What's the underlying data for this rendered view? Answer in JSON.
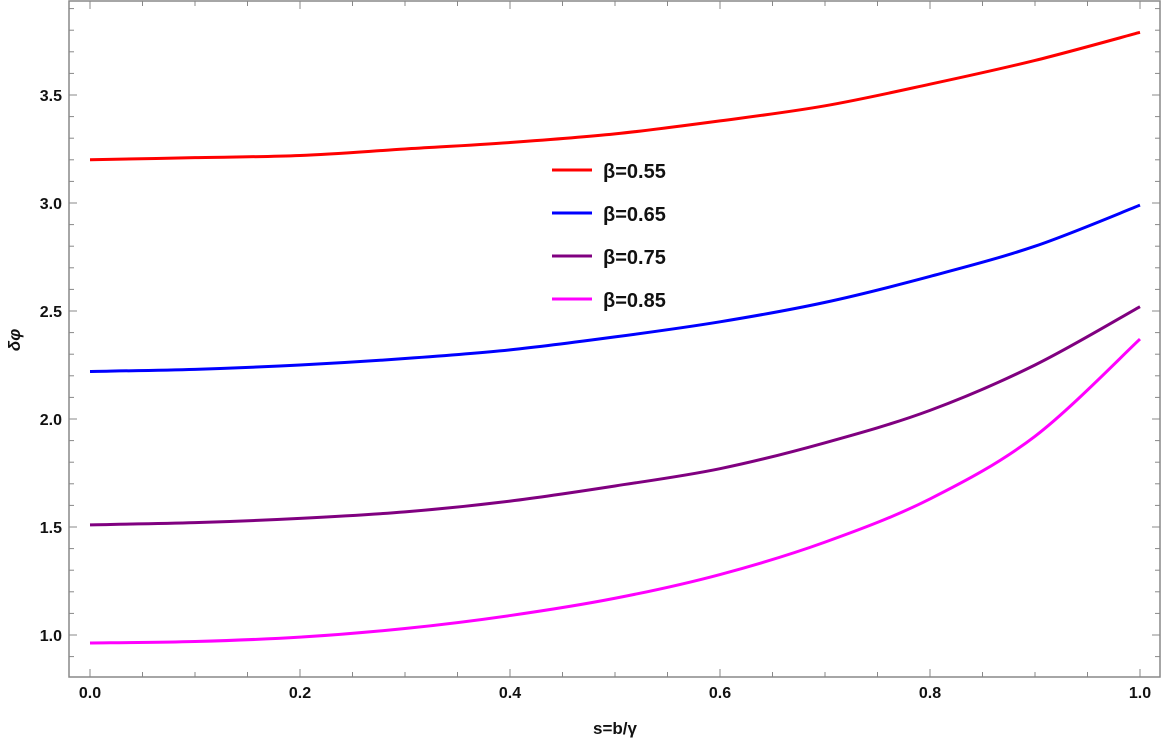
{
  "chart_data": {
    "type": "line",
    "title": "",
    "xlabel": "s=b/γ",
    "ylabel": "δφ",
    "xlim": [
      -0.02,
      1.02
    ],
    "ylim": [
      0.73,
      3.86
    ],
    "xticks": [
      0.0,
      0.2,
      0.4,
      0.6,
      0.8,
      1.0
    ],
    "xtick_labels": [
      "0.0",
      "0.2",
      "0.4",
      "0.6",
      "0.8",
      "1.0"
    ],
    "yticks": [
      1.0,
      1.5,
      2.0,
      2.5,
      3.0,
      3.5
    ],
    "ytick_labels": [
      "1.0",
      "1.5",
      "2.0",
      "2.5",
      "3.0",
      "3.5"
    ],
    "grid": false,
    "legend_position": "center-top",
    "x": [
      0.0,
      0.1,
      0.2,
      0.3,
      0.4,
      0.5,
      0.6,
      0.7,
      0.8,
      0.9,
      1.0
    ],
    "series": [
      {
        "name": "β=0.55",
        "color": "#ff0000",
        "values": [
          3.2,
          3.21,
          3.22,
          3.25,
          3.28,
          3.32,
          3.38,
          3.45,
          3.55,
          3.66,
          3.79
        ]
      },
      {
        "name": "β=0.65",
        "color": "#0000ff",
        "values": [
          2.22,
          2.23,
          2.25,
          2.28,
          2.32,
          2.38,
          2.45,
          2.54,
          2.66,
          2.8,
          2.99
        ]
      },
      {
        "name": "β=0.75",
        "color": "#800080",
        "values": [
          1.51,
          1.52,
          1.54,
          1.57,
          1.62,
          1.69,
          1.77,
          1.89,
          2.04,
          2.25,
          2.52
        ]
      },
      {
        "name": "β=0.85",
        "color": "#ff00ff",
        "values": [
          0.963,
          0.97,
          0.99,
          1.03,
          1.09,
          1.17,
          1.28,
          1.43,
          1.63,
          1.92,
          2.37
        ]
      }
    ]
  }
}
